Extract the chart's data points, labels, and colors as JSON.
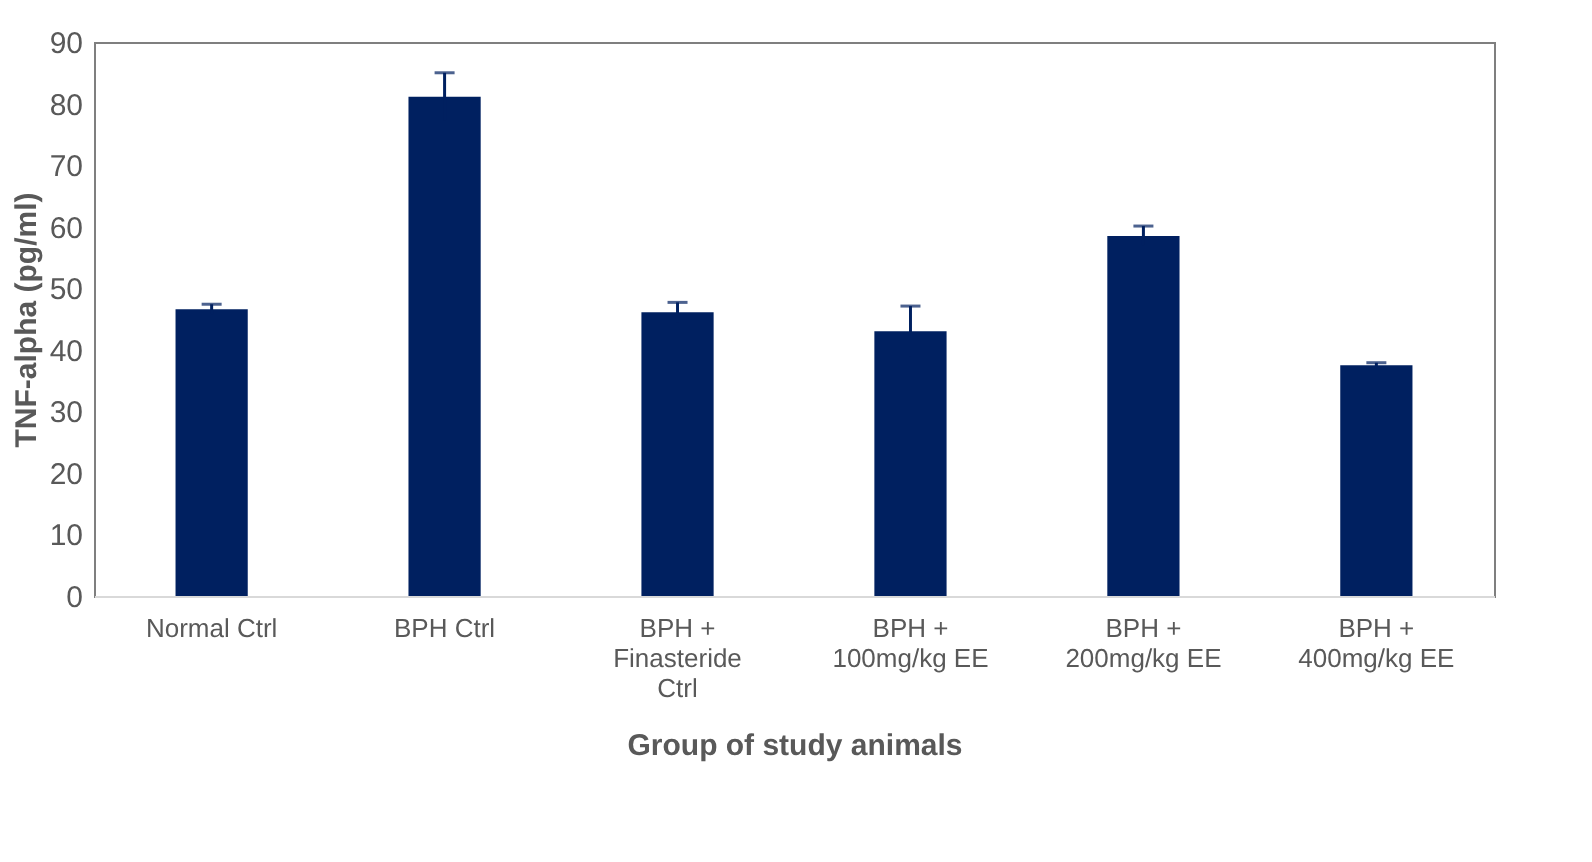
{
  "chart_data": {
    "type": "bar",
    "xlabel": "Group of study animals",
    "ylabel": "TNF-alpha (pg/ml)",
    "categories": [
      "Normal Ctrl",
      "BPH Ctrl",
      "BPH + Finasteride Ctrl",
      "BPH + 100mg/kg EE",
      "BPH + 200mg/kg EE",
      "BPH + 400mg/kg EE"
    ],
    "values": [
      46.6,
      81.1,
      46.1,
      43.0,
      58.5,
      37.5
    ],
    "errors": [
      0.8,
      3.9,
      1.6,
      4.1,
      1.6,
      0.4
    ],
    "color": "#002060",
    "ylim": [
      0,
      90
    ],
    "yticks": [
      0,
      10,
      20,
      30,
      40,
      50,
      60,
      70,
      80,
      90
    ],
    "grid": false
  }
}
